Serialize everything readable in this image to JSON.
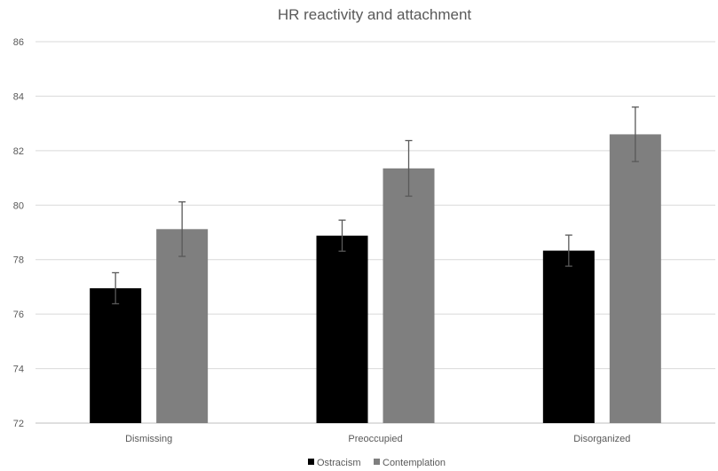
{
  "chart_data": {
    "type": "bar",
    "title": "HR reactivity and attachment",
    "xlabel": "",
    "ylabel": "",
    "categories": [
      "Dismissing",
      "Preoccupied",
      "Disorganized"
    ],
    "ylim": [
      72,
      86
    ],
    "yticks": [
      72,
      74,
      76,
      78,
      80,
      82,
      84,
      86
    ],
    "grid": true,
    "legend_position": "bottom",
    "series": [
      {
        "name": "Ostracism",
        "color": "#000000",
        "values": [
          76.95,
          78.88,
          78.33
        ],
        "error": [
          0.57,
          0.57,
          0.57
        ]
      },
      {
        "name": "Contemplation",
        "color": "#7f7f7f",
        "values": [
          79.12,
          81.35,
          82.6
        ],
        "error": [
          1.0,
          1.02,
          1.0
        ]
      }
    ]
  }
}
